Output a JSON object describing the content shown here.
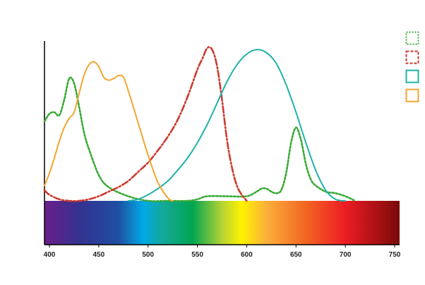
{
  "chart_data": {
    "type": "line",
    "title": "",
    "xlabel": "",
    "ylabel": "",
    "xlim": [
      395,
      755
    ],
    "ylim": [
      0,
      1
    ],
    "xticks": [
      "400",
      "450",
      "500",
      "550",
      "600",
      "650",
      "700",
      "750"
    ],
    "legend_position": "top-right",
    "spectrum_band": {
      "stops": [
        {
          "nm": 395,
          "color": "#6a1f8a"
        },
        {
          "nm": 430,
          "color": "#34318f"
        },
        {
          "nm": 470,
          "color": "#1f4fa3"
        },
        {
          "nm": 495,
          "color": "#00a9e6"
        },
        {
          "nm": 515,
          "color": "#14a89a"
        },
        {
          "nm": 545,
          "color": "#00a650"
        },
        {
          "nm": 575,
          "color": "#b5d334"
        },
        {
          "nm": 595,
          "color": "#fff200"
        },
        {
          "nm": 620,
          "color": "#fbb03b"
        },
        {
          "nm": 660,
          "color": "#f26522"
        },
        {
          "nm": 700,
          "color": "#ed1c24"
        },
        {
          "nm": 755,
          "color": "#7a0a0a"
        }
      ]
    },
    "series": [
      {
        "color": "#3aaa35",
        "style": "dotted",
        "x": [
          395,
          400,
          405,
          410,
          415,
          420,
          425,
          430,
          435,
          440,
          450,
          460,
          480,
          500,
          520,
          540,
          550,
          560,
          580,
          600,
          610,
          615,
          620,
          625,
          630,
          635,
          640,
          645,
          650,
          655,
          660,
          665,
          670,
          680,
          690,
          700,
          710
        ],
        "y": [
          0.52,
          0.57,
          0.58,
          0.56,
          0.66,
          0.8,
          0.77,
          0.62,
          0.45,
          0.34,
          0.17,
          0.09,
          0.03,
          0.0,
          0.0,
          0.0,
          0.01,
          0.03,
          0.03,
          0.03,
          0.06,
          0.08,
          0.08,
          0.06,
          0.05,
          0.07,
          0.18,
          0.38,
          0.48,
          0.4,
          0.24,
          0.14,
          0.1,
          0.06,
          0.05,
          0.03,
          0.0
        ]
      },
      {
        "color": "#cc3a2e",
        "style": "dash-dot",
        "x": [
          395,
          400,
          410,
          420,
          430,
          440,
          450,
          460,
          470,
          480,
          490,
          500,
          510,
          520,
          530,
          540,
          550,
          555,
          560,
          565,
          570,
          575,
          580,
          585,
          590,
          595,
          600
        ],
        "y": [
          0.07,
          0.04,
          0.01,
          0.0,
          0.0,
          0.01,
          0.03,
          0.06,
          0.09,
          0.13,
          0.19,
          0.25,
          0.33,
          0.42,
          0.53,
          0.68,
          0.86,
          0.93,
          1.0,
          0.99,
          0.88,
          0.66,
          0.4,
          0.22,
          0.1,
          0.04,
          0.0
        ]
      },
      {
        "color": "#1fb2a8",
        "style": "solid",
        "x": [
          480,
          490,
          500,
          510,
          520,
          530,
          540,
          550,
          560,
          570,
          580,
          590,
          600,
          610,
          620,
          630,
          640,
          650,
          660,
          670,
          680,
          690,
          700
        ],
        "y": [
          0.0,
          0.01,
          0.04,
          0.08,
          0.13,
          0.2,
          0.28,
          0.38,
          0.5,
          0.64,
          0.78,
          0.89,
          0.96,
          0.99,
          0.97,
          0.9,
          0.76,
          0.58,
          0.38,
          0.2,
          0.07,
          0.01,
          0.0
        ]
      },
      {
        "color": "#f3a531",
        "style": "solid",
        "x": [
          395,
          400,
          405,
          410,
          415,
          420,
          425,
          430,
          435,
          440,
          445,
          450,
          455,
          460,
          465,
          470,
          475,
          480,
          490,
          500,
          510,
          520,
          525
        ],
        "y": [
          0.1,
          0.18,
          0.28,
          0.39,
          0.48,
          0.54,
          0.58,
          0.7,
          0.82,
          0.89,
          0.91,
          0.88,
          0.81,
          0.79,
          0.8,
          0.82,
          0.81,
          0.72,
          0.51,
          0.3,
          0.12,
          0.02,
          0.0
        ]
      }
    ]
  }
}
